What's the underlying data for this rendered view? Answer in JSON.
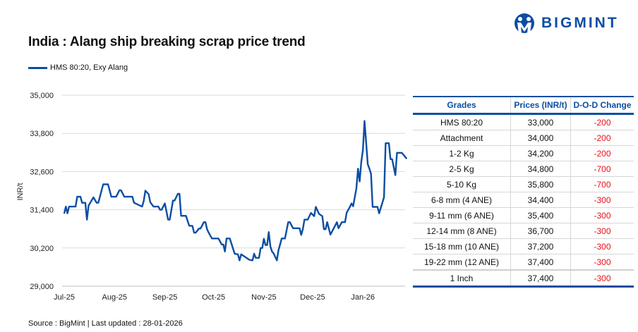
{
  "title": "India : Alang ship breaking scrap price trend",
  "logo": {
    "text": "BIGMINT",
    "color": "#0b4ea2"
  },
  "source": "Source : BigMint | Last updated : 28-01-2026",
  "chart_data": {
    "type": "line",
    "title": "India : Alang ship breaking scrap price trend",
    "ylabel": "INR/t",
    "xlabel": "",
    "ylim": [
      29000,
      35000
    ],
    "yticks": [
      "29,000",
      "30,200",
      "31,400",
      "32,600",
      "33,800",
      "35,000"
    ],
    "ytick_values": [
      29000,
      30200,
      31400,
      32600,
      33800,
      35000
    ],
    "xticks": [
      "Jul-25",
      "Aug-25",
      "Sep-25",
      "Oct-25",
      "Nov-25",
      "Dec-25",
      "Jan-26"
    ],
    "xtick_dates": [
      "2025-07-01",
      "2025-08-01",
      "2025-09-01",
      "2025-10-01",
      "2025-11-01",
      "2025-12-01",
      "2026-01-01"
    ],
    "grid": "horizontal",
    "legend": "top-left",
    "series": [
      {
        "name": "HMS 80:20, Exy Alang",
        "color": "#0b4ea2",
        "points": [
          [
            "2025-07-01",
            31280
          ],
          [
            "2025-07-02",
            31500
          ],
          [
            "2025-07-03",
            31290
          ],
          [
            "2025-07-04",
            31500
          ],
          [
            "2025-07-08",
            31500
          ],
          [
            "2025-07-09",
            31810
          ],
          [
            "2025-07-11",
            31810
          ],
          [
            "2025-07-12",
            31620
          ],
          [
            "2025-07-14",
            31620
          ],
          [
            "2025-07-15",
            31090
          ],
          [
            "2025-07-16",
            31530
          ],
          [
            "2025-07-19",
            31790
          ],
          [
            "2025-07-21",
            31620
          ],
          [
            "2025-07-22",
            31620
          ],
          [
            "2025-07-25",
            32200
          ],
          [
            "2025-07-28",
            32200
          ],
          [
            "2025-07-30",
            31810
          ],
          [
            "2025-08-02",
            31810
          ],
          [
            "2025-08-04",
            32010
          ],
          [
            "2025-08-05",
            32010
          ],
          [
            "2025-08-07",
            31810
          ],
          [
            "2025-08-12",
            31810
          ],
          [
            "2025-08-13",
            31620
          ],
          [
            "2025-08-18",
            31500
          ],
          [
            "2025-08-19",
            31680
          ],
          [
            "2025-08-20",
            32000
          ],
          [
            "2025-08-22",
            31890
          ],
          [
            "2025-08-23",
            31640
          ],
          [
            "2025-08-25",
            31500
          ],
          [
            "2025-08-28",
            31500
          ],
          [
            "2025-08-29",
            31400
          ],
          [
            "2025-08-30",
            31400
          ],
          [
            "2025-09-01",
            31600
          ],
          [
            "2025-09-03",
            31090
          ],
          [
            "2025-09-04",
            31090
          ],
          [
            "2025-09-06",
            31690
          ],
          [
            "2025-09-07",
            31690
          ],
          [
            "2025-09-09",
            31900
          ],
          [
            "2025-09-10",
            31900
          ],
          [
            "2025-09-11",
            31210
          ],
          [
            "2025-09-14",
            31210
          ],
          [
            "2025-09-16",
            30900
          ],
          [
            "2025-09-18",
            30890
          ],
          [
            "2025-09-19",
            30680
          ],
          [
            "2025-09-20",
            30680
          ],
          [
            "2025-09-22",
            30810
          ],
          [
            "2025-09-23",
            30810
          ],
          [
            "2025-09-25",
            31010
          ],
          [
            "2025-09-26",
            31010
          ],
          [
            "2025-09-27",
            30790
          ],
          [
            "2025-09-28",
            30680
          ],
          [
            "2025-09-30",
            30500
          ],
          [
            "2025-10-04",
            30500
          ],
          [
            "2025-10-06",
            30310
          ],
          [
            "2025-10-07",
            30310
          ],
          [
            "2025-10-08",
            30090
          ],
          [
            "2025-10-09",
            30500
          ],
          [
            "2025-10-11",
            30500
          ],
          [
            "2025-10-14",
            30020
          ],
          [
            "2025-10-16",
            30000
          ],
          [
            "2025-10-17",
            29810
          ],
          [
            "2025-10-18",
            30000
          ],
          [
            "2025-10-23",
            29830
          ],
          [
            "2025-10-25",
            29810
          ],
          [
            "2025-10-26",
            30020
          ],
          [
            "2025-10-27",
            29890
          ],
          [
            "2025-10-29",
            29890
          ],
          [
            "2025-10-30",
            30200
          ],
          [
            "2025-10-31",
            30200
          ],
          [
            "2025-11-01",
            30490
          ],
          [
            "2025-11-02",
            30290
          ],
          [
            "2025-11-03",
            30290
          ],
          [
            "2025-11-04",
            30700
          ],
          [
            "2025-11-05",
            30250
          ],
          [
            "2025-11-06",
            30090
          ],
          [
            "2025-11-07",
            30030
          ],
          [
            "2025-11-09",
            29810
          ],
          [
            "2025-11-10",
            30130
          ],
          [
            "2025-11-12",
            30500
          ],
          [
            "2025-11-14",
            30500
          ],
          [
            "2025-11-16",
            31010
          ],
          [
            "2025-11-17",
            31010
          ],
          [
            "2025-11-19",
            30820
          ],
          [
            "2025-11-23",
            30820
          ],
          [
            "2025-11-24",
            30610
          ],
          [
            "2025-11-25",
            30790
          ],
          [
            "2025-11-26",
            31090
          ],
          [
            "2025-11-28",
            31090
          ],
          [
            "2025-11-30",
            31300
          ],
          [
            "2025-12-02",
            31200
          ],
          [
            "2025-12-03",
            31490
          ],
          [
            "2025-12-05",
            31270
          ],
          [
            "2025-12-07",
            31200
          ],
          [
            "2025-12-08",
            30790
          ],
          [
            "2025-12-09",
            30790
          ],
          [
            "2025-12-10",
            31010
          ],
          [
            "2025-12-12",
            30620
          ],
          [
            "2025-12-16",
            31010
          ],
          [
            "2025-12-17",
            30820
          ],
          [
            "2025-12-19",
            31010
          ],
          [
            "2025-12-21",
            31010
          ],
          [
            "2025-12-22",
            31310
          ],
          [
            "2025-12-24",
            31490
          ],
          [
            "2025-12-25",
            31600
          ],
          [
            "2025-12-26",
            31510
          ],
          [
            "2025-12-28",
            32080
          ],
          [
            "2025-12-29",
            32690
          ],
          [
            "2025-12-30",
            32290
          ],
          [
            "2025-12-31",
            32900
          ],
          [
            "2026-01-01",
            33270
          ],
          [
            "2026-01-02",
            34190
          ],
          [
            "2026-01-04",
            32830
          ],
          [
            "2026-01-05",
            32690
          ],
          [
            "2026-01-06",
            32530
          ],
          [
            "2026-01-07",
            31490
          ],
          [
            "2026-01-10",
            31490
          ],
          [
            "2026-01-11",
            31290
          ],
          [
            "2026-01-14",
            31790
          ],
          [
            "2026-01-15",
            33490
          ],
          [
            "2026-01-17",
            33490
          ],
          [
            "2026-01-18",
            32990
          ],
          [
            "2026-01-19",
            32990
          ],
          [
            "2026-01-21",
            32490
          ],
          [
            "2026-01-22",
            33190
          ],
          [
            "2026-01-25",
            33190
          ],
          [
            "2026-01-28",
            33000
          ]
        ]
      }
    ]
  },
  "table": {
    "headers": [
      "Grades",
      "Prices (INR/t)",
      "D-O-D Change"
    ],
    "rows": [
      [
        "HMS 80:20",
        "33,000",
        "-200"
      ],
      [
        "Attachment",
        "34,000",
        "-200"
      ],
      [
        "1-2 Kg",
        "34,200",
        "-200"
      ],
      [
        "2-5 Kg",
        "34,800",
        "-700"
      ],
      [
        "5-10 Kg",
        "35,800",
        "-700"
      ],
      [
        "6-8 mm (4 ANE)",
        "34,400",
        "-300"
      ],
      [
        "9-11 mm (6 ANE)",
        "35,400",
        "-300"
      ],
      [
        "12-14 mm (8 ANE)",
        "36,700",
        "-300"
      ],
      [
        "15-18 mm (10 ANE)",
        "37,200",
        "-300"
      ],
      [
        "19-22 mm (12 ANE)",
        "37,400",
        "-300"
      ],
      [
        "1 Inch",
        "37,400",
        "-300"
      ]
    ],
    "negative_color": "#e8101a",
    "header_color": "#0b4ea2"
  }
}
